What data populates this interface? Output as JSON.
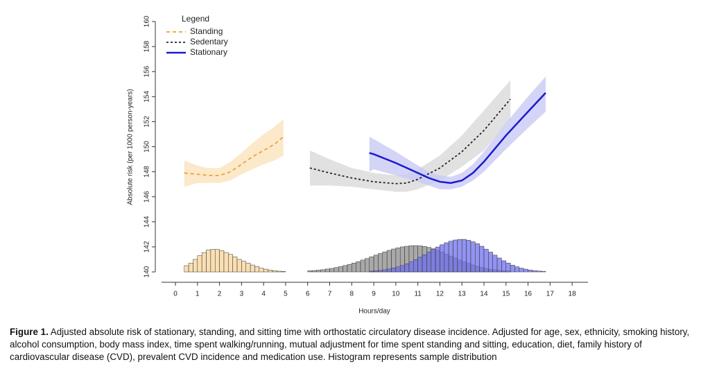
{
  "chart_data": {
    "type": "line",
    "ylabel": "Absolute risk (per 1000 person-years)",
    "xlabel": "Hours/day",
    "legend_title": "Legend",
    "xlim": [
      -0.63,
      18.72
    ],
    "xticks": [
      0,
      1,
      2,
      3,
      4,
      5,
      6,
      7,
      8,
      9,
      10,
      11,
      12,
      13,
      14,
      15,
      16,
      17,
      18
    ],
    "ylim": [
      139.78,
      160.72
    ],
    "yticks": [
      140,
      142,
      144,
      146,
      148,
      150,
      152,
      154,
      156,
      158,
      160
    ],
    "series": [
      {
        "name": "Standing",
        "color": "#e8a33a",
        "dash": "dashed",
        "band_color": "#fbe3bd",
        "x": [
          0.4,
          1,
          1.5,
          2,
          2.5,
          3,
          3.5,
          4,
          4.5,
          4.9
        ],
        "values": [
          147.9,
          147.8,
          147.7,
          147.7,
          148.0,
          148.6,
          149.2,
          149.7,
          150.2,
          150.8
        ],
        "upper": [
          148.9,
          148.5,
          148.3,
          148.3,
          148.8,
          149.5,
          150.3,
          151.0,
          151.6,
          152.2
        ],
        "lower": [
          146.8,
          147.1,
          147.1,
          147.1,
          147.3,
          147.8,
          148.2,
          148.6,
          148.9,
          149.3
        ],
        "hist": {
          "color": "#f7d49a",
          "bins": [
            0.4,
            0.6,
            0.8,
            1.0,
            1.2,
            1.4,
            1.6,
            1.8,
            2.0,
            2.2,
            2.4,
            2.6,
            2.8,
            3.0,
            3.2,
            3.4,
            3.6,
            3.8,
            4.0,
            4.2,
            4.4,
            4.6,
            4.8,
            5.0
          ],
          "values": [
            140.5,
            140.7,
            141.0,
            141.3,
            141.55,
            141.75,
            141.8,
            141.8,
            141.7,
            141.55,
            141.4,
            141.2,
            141.0,
            140.85,
            140.7,
            140.55,
            140.42,
            140.3,
            140.22,
            140.15,
            140.1,
            140.06,
            140.03
          ]
        }
      },
      {
        "name": "Sedentary",
        "color": "#222222",
        "dash": "dotted",
        "band_color": "#d9d9d9",
        "x": [
          6.1,
          7,
          8,
          9,
          10,
          10.5,
          11,
          12,
          13,
          14,
          15.2
        ],
        "values": [
          148.3,
          147.9,
          147.5,
          147.2,
          147.05,
          147.1,
          147.4,
          148.3,
          149.6,
          151.3,
          153.8
        ],
        "upper": [
          149.7,
          149.0,
          148.3,
          147.9,
          147.7,
          147.8,
          148.2,
          149.3,
          150.9,
          152.9,
          155.3
        ],
        "lower": [
          146.9,
          146.9,
          146.8,
          146.6,
          146.4,
          146.4,
          146.6,
          147.3,
          148.4,
          149.7,
          152.2
        ],
        "hist": {
          "color": "#8c8c8c",
          "bins": [
            6.0,
            6.2,
            6.4,
            6.6,
            6.8,
            7.0,
            7.2,
            7.4,
            7.6,
            7.8,
            8.0,
            8.2,
            8.4,
            8.6,
            8.8,
            9.0,
            9.2,
            9.4,
            9.6,
            9.8,
            10.0,
            10.2,
            10.4,
            10.6,
            10.8,
            11.0,
            11.2,
            11.4,
            11.6,
            11.8,
            12.0,
            12.2,
            12.4,
            12.6,
            12.8,
            13.0,
            13.2,
            13.4,
            13.6,
            13.8,
            14.0,
            14.2,
            14.4,
            14.6,
            14.8,
            15.0,
            15.2
          ],
          "values": [
            140.09,
            140.11,
            140.14,
            140.18,
            140.23,
            140.28,
            140.35,
            140.42,
            140.51,
            140.6,
            140.71,
            140.82,
            140.95,
            141.07,
            141.21,
            141.34,
            141.47,
            141.6,
            141.72,
            141.83,
            141.92,
            142.0,
            142.05,
            142.09,
            142.1,
            142.08,
            142.04,
            141.96,
            141.85,
            141.73,
            141.59,
            141.43,
            141.27,
            141.12,
            140.96,
            140.82,
            140.68,
            140.56,
            140.45,
            140.36,
            140.28,
            140.22,
            140.17,
            140.13,
            140.09,
            140.07
          ]
        }
      },
      {
        "name": "Stationary",
        "color": "#1a1acc",
        "dash": "solid",
        "band_color": "#c9c9f5",
        "x": [
          8.8,
          9,
          10,
          11,
          11.5,
          12,
          12.5,
          13,
          13.5,
          14,
          15,
          16,
          16.8
        ],
        "values": [
          149.5,
          149.4,
          148.7,
          147.9,
          147.5,
          147.2,
          147.1,
          147.3,
          147.9,
          148.8,
          150.9,
          152.8,
          154.3
        ],
        "upper": [
          150.8,
          150.6,
          149.6,
          148.5,
          148.0,
          147.7,
          147.6,
          147.9,
          148.6,
          149.6,
          151.9,
          154.0,
          155.6
        ],
        "lower": [
          148.0,
          148.2,
          147.7,
          147.2,
          146.9,
          146.6,
          146.6,
          146.8,
          147.3,
          148.0,
          149.8,
          151.5,
          152.8
        ],
        "hist": {
          "color": "#6f6fee",
          "bins": [
            8.8,
            9.0,
            9.2,
            9.4,
            9.6,
            9.8,
            10.0,
            10.2,
            10.4,
            10.6,
            10.8,
            11.0,
            11.2,
            11.4,
            11.6,
            11.8,
            12.0,
            12.2,
            12.4,
            12.6,
            12.8,
            13.0,
            13.2,
            13.4,
            13.6,
            13.8,
            14.0,
            14.2,
            14.4,
            14.6,
            14.8,
            15.0,
            15.2,
            15.4,
            15.6,
            15.8,
            16.0,
            16.2,
            16.4,
            16.6,
            16.8
          ],
          "values": [
            140.06,
            140.09,
            140.12,
            140.17,
            140.23,
            140.31,
            140.4,
            140.51,
            140.65,
            140.8,
            140.98,
            141.17,
            141.37,
            141.58,
            141.79,
            141.99,
            142.17,
            142.33,
            142.46,
            142.55,
            142.6,
            142.6,
            142.53,
            142.41,
            142.25,
            142.05,
            141.82,
            141.58,
            141.34,
            141.11,
            140.89,
            140.71,
            140.54,
            140.41,
            140.3,
            140.22,
            140.15,
            140.1,
            140.07,
            140.05
          ]
        }
      }
    ]
  },
  "caption": {
    "label": "Figure 1.",
    "text": "Adjusted absolute risk of stationary, standing, and sitting time with orthostatic circulatory disease incidence. Adjusted for age, sex, ethnicity, smoking history, alcohol consumption, body mass index, time spent walking/running, mutual adjustment for time spent standing and sitting, education, diet, family history of cardiovascular disease (CVD), prevalent CVD incidence and medication use. Histogram represents sample distribution"
  }
}
